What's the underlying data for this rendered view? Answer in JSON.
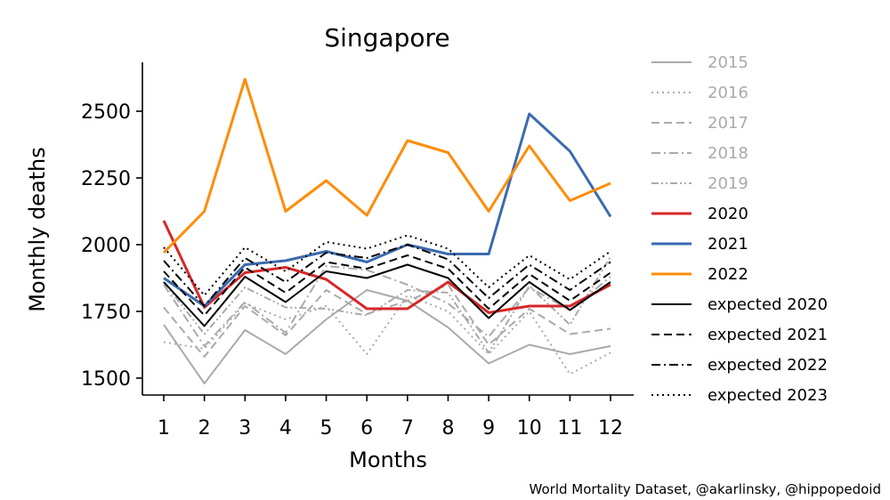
{
  "chart_data": {
    "type": "line",
    "title": "Singapore",
    "xlabel": "Months",
    "ylabel": "Monthly deaths",
    "credit": "World Mortality Dataset, @akarlinsky, @hippopedoid",
    "x": [
      1,
      2,
      3,
      4,
      5,
      6,
      7,
      8,
      9,
      10,
      11,
      12
    ],
    "x_ticks": [
      1,
      2,
      3,
      4,
      5,
      6,
      7,
      8,
      9,
      10,
      11,
      12
    ],
    "y_ticks": [
      1500,
      1750,
      2000,
      2250,
      2500
    ],
    "ylim": [
      1430,
      2690
    ],
    "xlim": [
      0.5,
      12.5
    ],
    "grid": false,
    "legend_placement": "right",
    "series": [
      {
        "name": "2015",
        "color": "#aaaaaa",
        "dash": "solid",
        "width": 2,
        "values": [
          1700,
          1480,
          1680,
          1590,
          1720,
          1830,
          1790,
          1690,
          1555,
          1625,
          1590,
          1620
        ]
      },
      {
        "name": "2016",
        "color": "#aaaaaa",
        "dash": "dotted",
        "width": 2,
        "values": [
          1635,
          1610,
          1780,
          1720,
          1770,
          1590,
          1810,
          1750,
          1590,
          1750,
          1515,
          1595
        ]
      },
      {
        "name": "2017",
        "color": "#aaaaaa",
        "dash": "dashed",
        "width": 2,
        "values": [
          1765,
          1580,
          1770,
          1660,
          1830,
          1740,
          1790,
          1850,
          1625,
          1760,
          1665,
          1685
        ]
      },
      {
        "name": "2018",
        "color": "#aaaaaa",
        "dash": "dashdot",
        "width": 2,
        "values": [
          1850,
          1620,
          1785,
          1670,
          1920,
          1905,
          1850,
          1780,
          1655,
          1840,
          1755,
          1880
        ]
      },
      {
        "name": "2019",
        "color": "#aaaaaa",
        "dash": "dashdotdot",
        "width": 2,
        "values": [
          1860,
          1665,
          1840,
          1765,
          1760,
          1735,
          1830,
          1820,
          1595,
          1845,
          1700,
          1955
        ]
      },
      {
        "name": "2020",
        "color": "#d62728",
        "dash": "solid",
        "width": 3,
        "values": [
          2090,
          1765,
          1895,
          1915,
          1870,
          1760,
          1760,
          1860,
          1745,
          1770,
          1770,
          1850
        ]
      },
      {
        "name": "2021",
        "color": "#3b6aae",
        "dash": "solid",
        "width": 3,
        "values": [
          1875,
          1770,
          1925,
          1940,
          1975,
          1935,
          2000,
          1965,
          1965,
          2490,
          2350,
          2105
        ]
      },
      {
        "name": "2022",
        "color": "#ff8c0a",
        "dash": "solid",
        "width": 3,
        "values": [
          1970,
          2125,
          2620,
          2125,
          2240,
          2110,
          2390,
          2345,
          2125,
          2370,
          2165,
          2230
        ]
      },
      {
        "name": "expected 2020",
        "color": "#000000",
        "dash": "solid",
        "width": 2,
        "values": [
          1860,
          1695,
          1880,
          1785,
          1900,
          1875,
          1925,
          1875,
          1725,
          1860,
          1755,
          1860
        ]
      },
      {
        "name": "expected 2021",
        "color": "#000000",
        "dash": "dashed",
        "width": 2,
        "values": [
          1900,
          1735,
          1915,
          1820,
          1935,
          1910,
          1960,
          1910,
          1760,
          1890,
          1790,
          1895
        ]
      },
      {
        "name": "expected 2022",
        "color": "#000000",
        "dash": "dashdot",
        "width": 2,
        "values": [
          1940,
          1770,
          1950,
          1860,
          1970,
          1950,
          2000,
          1945,
          1800,
          1925,
          1830,
          1935
        ]
      },
      {
        "name": "expected 2023",
        "color": "#000000",
        "dash": "dotted",
        "width": 2,
        "values": [
          1990,
          1810,
          1990,
          1900,
          2010,
          1985,
          2035,
          1985,
          1840,
          1960,
          1870,
          1975
        ]
      }
    ]
  }
}
